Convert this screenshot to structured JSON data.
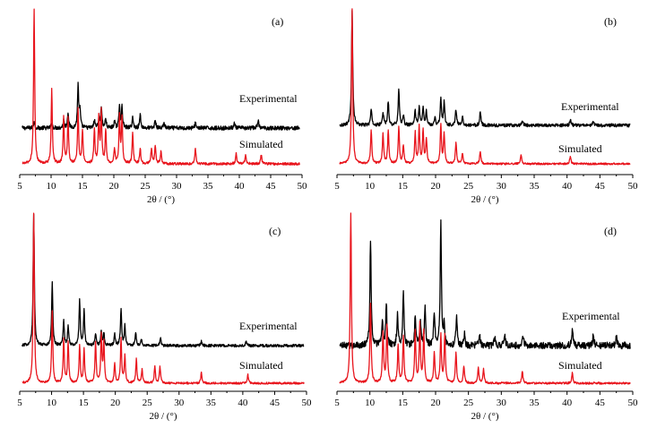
{
  "colors": {
    "experimental": "#000000",
    "simulated": "#e8141c",
    "axis": "#000000"
  },
  "chart_data": [
    {
      "type": "line",
      "panel_label": "(a)",
      "xlabel": "2θ / (°)",
      "xlim": [
        5,
        50
      ],
      "x_ticks": [
        5,
        10,
        15,
        20,
        25,
        30,
        35,
        40,
        45,
        50
      ],
      "y_axis_shown": false,
      "series": [
        {
          "name": "Experimental",
          "baseline": 0.42,
          "noise": 0.015,
          "peaks": [
            [
              7.3,
              0.05
            ],
            [
              10.1,
              0.04
            ],
            [
              12.0,
              0.06
            ],
            [
              12.7,
              0.12
            ],
            [
              14.3,
              0.32
            ],
            [
              14.6,
              0.12
            ],
            [
              16.9,
              0.06
            ],
            [
              17.6,
              0.07
            ],
            [
              18.0,
              0.16
            ],
            [
              18.7,
              0.07
            ],
            [
              20.1,
              0.05
            ],
            [
              20.9,
              0.17
            ],
            [
              21.3,
              0.15
            ],
            [
              23.0,
              0.08
            ],
            [
              24.2,
              0.1
            ],
            [
              26.6,
              0.06
            ],
            [
              28.0,
              0.04
            ],
            [
              33.0,
              0.04
            ],
            [
              39.2,
              0.04
            ],
            [
              43.0,
              0.06
            ]
          ]
        },
        {
          "name": "Simulated",
          "baseline": 0.02,
          "noise": 0.008,
          "peaks": [
            [
              7.3,
              1.0
            ],
            [
              10.1,
              0.48
            ],
            [
              12.0,
              0.3
            ],
            [
              12.7,
              0.3
            ],
            [
              14.3,
              0.35
            ],
            [
              15.0,
              0.22
            ],
            [
              16.9,
              0.22
            ],
            [
              17.6,
              0.3
            ],
            [
              18.0,
              0.33
            ],
            [
              18.7,
              0.22
            ],
            [
              20.1,
              0.1
            ],
            [
              20.9,
              0.3
            ],
            [
              21.3,
              0.3
            ],
            [
              23.0,
              0.2
            ],
            [
              24.2,
              0.1
            ],
            [
              26.0,
              0.1
            ],
            [
              26.6,
              0.12
            ],
            [
              27.5,
              0.08
            ],
            [
              33.0,
              0.1
            ],
            [
              39.5,
              0.07
            ],
            [
              41.0,
              0.06
            ],
            [
              43.5,
              0.06
            ]
          ]
        }
      ],
      "annotations": [
        "Experimental",
        "Simulated"
      ]
    },
    {
      "type": "line",
      "panel_label": "(b)",
      "xlabel": "2θ / (°)",
      "xlim": [
        5,
        50
      ],
      "x_ticks": [
        5,
        10,
        15,
        20,
        25,
        30,
        35,
        40,
        45,
        50
      ],
      "y_axis_shown": false,
      "series": [
        {
          "name": "Experimental",
          "baseline": 0.38,
          "noise": 0.012,
          "peaks": [
            [
              7.3,
              0.85
            ],
            [
              10.2,
              0.12
            ],
            [
              12.0,
              0.1
            ],
            [
              12.8,
              0.18
            ],
            [
              14.4,
              0.27
            ],
            [
              15.1,
              0.07
            ],
            [
              16.9,
              0.11
            ],
            [
              17.5,
              0.13
            ],
            [
              18.1,
              0.13
            ],
            [
              18.6,
              0.1
            ],
            [
              19.9,
              0.06
            ],
            [
              20.8,
              0.2
            ],
            [
              21.3,
              0.17
            ],
            [
              23.1,
              0.12
            ],
            [
              24.1,
              0.07
            ],
            [
              26.8,
              0.1
            ],
            [
              33.2,
              0.04
            ],
            [
              40.5,
              0.04
            ],
            [
              44.0,
              0.03
            ]
          ]
        },
        {
          "name": "Simulated",
          "baseline": 0.02,
          "noise": 0.006,
          "peaks": [
            [
              7.3,
              1.0
            ],
            [
              10.2,
              0.22
            ],
            [
              12.0,
              0.2
            ],
            [
              12.8,
              0.22
            ],
            [
              14.4,
              0.24
            ],
            [
              15.1,
              0.12
            ],
            [
              16.9,
              0.2
            ],
            [
              17.5,
              0.24
            ],
            [
              18.1,
              0.22
            ],
            [
              18.6,
              0.16
            ],
            [
              20.8,
              0.25
            ],
            [
              21.3,
              0.2
            ],
            [
              23.1,
              0.14
            ],
            [
              24.1,
              0.07
            ],
            [
              26.8,
              0.08
            ],
            [
              33.0,
              0.06
            ],
            [
              40.5,
              0.05
            ]
          ]
        }
      ],
      "annotations": [
        "Experimental",
        "Simulated"
      ]
    },
    {
      "type": "line",
      "panel_label": "(c)",
      "xlabel": "2θ / (°)",
      "xlim": [
        5,
        50
      ],
      "x_ticks": [
        5,
        10,
        15,
        20,
        25,
        30,
        35,
        40,
        45,
        50
      ],
      "y_axis_shown": false,
      "series": [
        {
          "name": "Experimental",
          "baseline": 0.32,
          "noise": 0.01,
          "peaks": [
            [
              7.2,
              0.95
            ],
            [
              10.1,
              0.45
            ],
            [
              11.9,
              0.18
            ],
            [
              12.6,
              0.14
            ],
            [
              14.4,
              0.33
            ],
            [
              15.1,
              0.25
            ],
            [
              16.9,
              0.09
            ],
            [
              17.8,
              0.1
            ],
            [
              18.2,
              0.09
            ],
            [
              19.9,
              0.08
            ],
            [
              20.9,
              0.27
            ],
            [
              21.5,
              0.14
            ],
            [
              23.2,
              0.09
            ],
            [
              24.1,
              0.05
            ],
            [
              27.1,
              0.05
            ],
            [
              33.5,
              0.03
            ],
            [
              40.5,
              0.03
            ]
          ]
        },
        {
          "name": "Simulated",
          "baseline": 0.02,
          "noise": 0.006,
          "peaks": [
            [
              7.2,
              1.0
            ],
            [
              10.1,
              0.42
            ],
            [
              11.9,
              0.26
            ],
            [
              12.6,
              0.24
            ],
            [
              14.4,
              0.22
            ],
            [
              15.1,
              0.2
            ],
            [
              16.9,
              0.24
            ],
            [
              17.8,
              0.28
            ],
            [
              18.2,
              0.24
            ],
            [
              19.9,
              0.12
            ],
            [
              20.9,
              0.26
            ],
            [
              21.5,
              0.16
            ],
            [
              23.3,
              0.14
            ],
            [
              24.2,
              0.08
            ],
            [
              26.2,
              0.1
            ],
            [
              27.0,
              0.1
            ],
            [
              33.5,
              0.06
            ],
            [
              40.8,
              0.05
            ]
          ]
        }
      ],
      "annotations": [
        "Experimental",
        "Simulated"
      ]
    },
    {
      "type": "line",
      "panel_label": "(d)",
      "xlabel": "2θ / (°)",
      "xlim": [
        5,
        50
      ],
      "x_ticks": [
        5,
        10,
        15,
        20,
        25,
        30,
        35,
        40,
        45,
        50
      ],
      "y_axis_shown": false,
      "series": [
        {
          "name": "Experimental",
          "baseline": 0.38,
          "noise": 0.02,
          "peaks": [
            [
              10.1,
              0.62
            ],
            [
              11.9,
              0.13
            ],
            [
              12.5,
              0.25
            ],
            [
              14.2,
              0.18
            ],
            [
              15.1,
              0.32
            ],
            [
              16.9,
              0.17
            ],
            [
              17.7,
              0.14
            ],
            [
              18.4,
              0.22
            ],
            [
              19.8,
              0.2
            ],
            [
              20.8,
              0.72
            ],
            [
              21.3,
              0.12
            ],
            [
              23.2,
              0.18
            ],
            [
              24.4,
              0.07
            ],
            [
              26.7,
              0.06
            ],
            [
              29.0,
              0.05
            ],
            [
              30.5,
              0.07
            ],
            [
              33.3,
              0.06
            ],
            [
              40.8,
              0.1
            ],
            [
              44.0,
              0.06
            ],
            [
              47.5,
              0.05
            ]
          ]
        },
        {
          "name": "Simulated",
          "baseline": 0.02,
          "noise": 0.006,
          "peaks": [
            [
              7.1,
              1.0
            ],
            [
              10.1,
              0.47
            ],
            [
              12.0,
              0.3
            ],
            [
              12.6,
              0.34
            ],
            [
              14.3,
              0.22
            ],
            [
              15.1,
              0.28
            ],
            [
              16.9,
              0.3
            ],
            [
              17.6,
              0.34
            ],
            [
              18.2,
              0.3
            ],
            [
              19.8,
              0.18
            ],
            [
              20.8,
              0.28
            ],
            [
              21.4,
              0.28
            ],
            [
              23.1,
              0.18
            ],
            [
              24.3,
              0.1
            ],
            [
              26.5,
              0.09
            ],
            [
              27.3,
              0.08
            ],
            [
              33.2,
              0.07
            ],
            [
              40.8,
              0.06
            ]
          ]
        }
      ],
      "annotations": [
        "Experimental",
        "Simulated"
      ]
    }
  ]
}
